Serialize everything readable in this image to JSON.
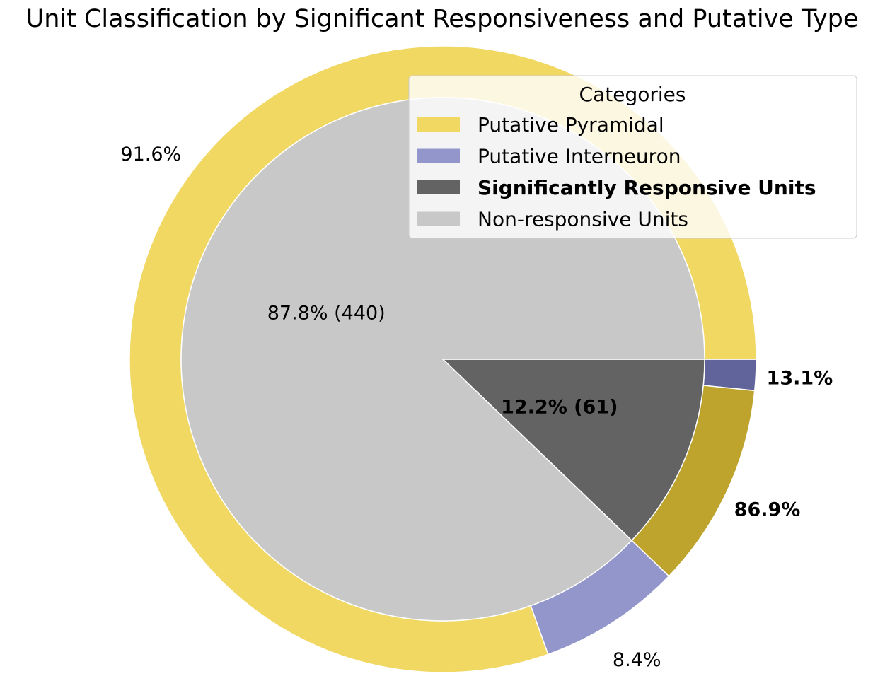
{
  "chart_data": {
    "type": "pie",
    "title": "Unit Classification by Significant Responsiveness and Putative Type",
    "inner": {
      "slices": [
        {
          "name": "Significantly Responsive Units",
          "value": 61,
          "percent": 12.2,
          "label": "12.2% (61)",
          "color": "#636363",
          "bold": true
        },
        {
          "name": "Non-responsive Units",
          "value": 440,
          "percent": 87.8,
          "label": "87.8% (440)",
          "color": "#c8c8c8",
          "bold": false
        }
      ]
    },
    "outer": {
      "groups": [
        {
          "parent": "Significantly Responsive Units",
          "slices": [
            {
              "name": "Putative Interneuron",
              "percent": 13.1,
              "label": "13.1%",
              "color": "#61649b",
              "bold": true
            },
            {
              "name": "Putative Pyramidal",
              "percent": 86.9,
              "label": "86.9%",
              "color": "#bea42d",
              "bold": true
            }
          ]
        },
        {
          "parent": "Non-responsive Units",
          "slices": [
            {
              "name": "Putative Interneuron",
              "percent": 8.4,
              "label": "8.4%",
              "color": "#9396cb",
              "bold": false
            },
            {
              "name": "Putative Pyramidal",
              "percent": 91.6,
              "label": "91.6%",
              "color": "#f0d863",
              "bold": false
            }
          ]
        }
      ]
    },
    "legend": {
      "title": "Categories",
      "placement": "top-right",
      "entries": [
        {
          "label": "Putative Pyramidal",
          "color": "#f0d863",
          "bold": false
        },
        {
          "label": "Putative Interneuron",
          "color": "#9396cb",
          "bold": false
        },
        {
          "label": "Significantly Responsive Units",
          "color": "#636363",
          "bold": true
        },
        {
          "label": "Non-responsive Units",
          "color": "#c8c8c8",
          "bold": false
        }
      ]
    }
  }
}
